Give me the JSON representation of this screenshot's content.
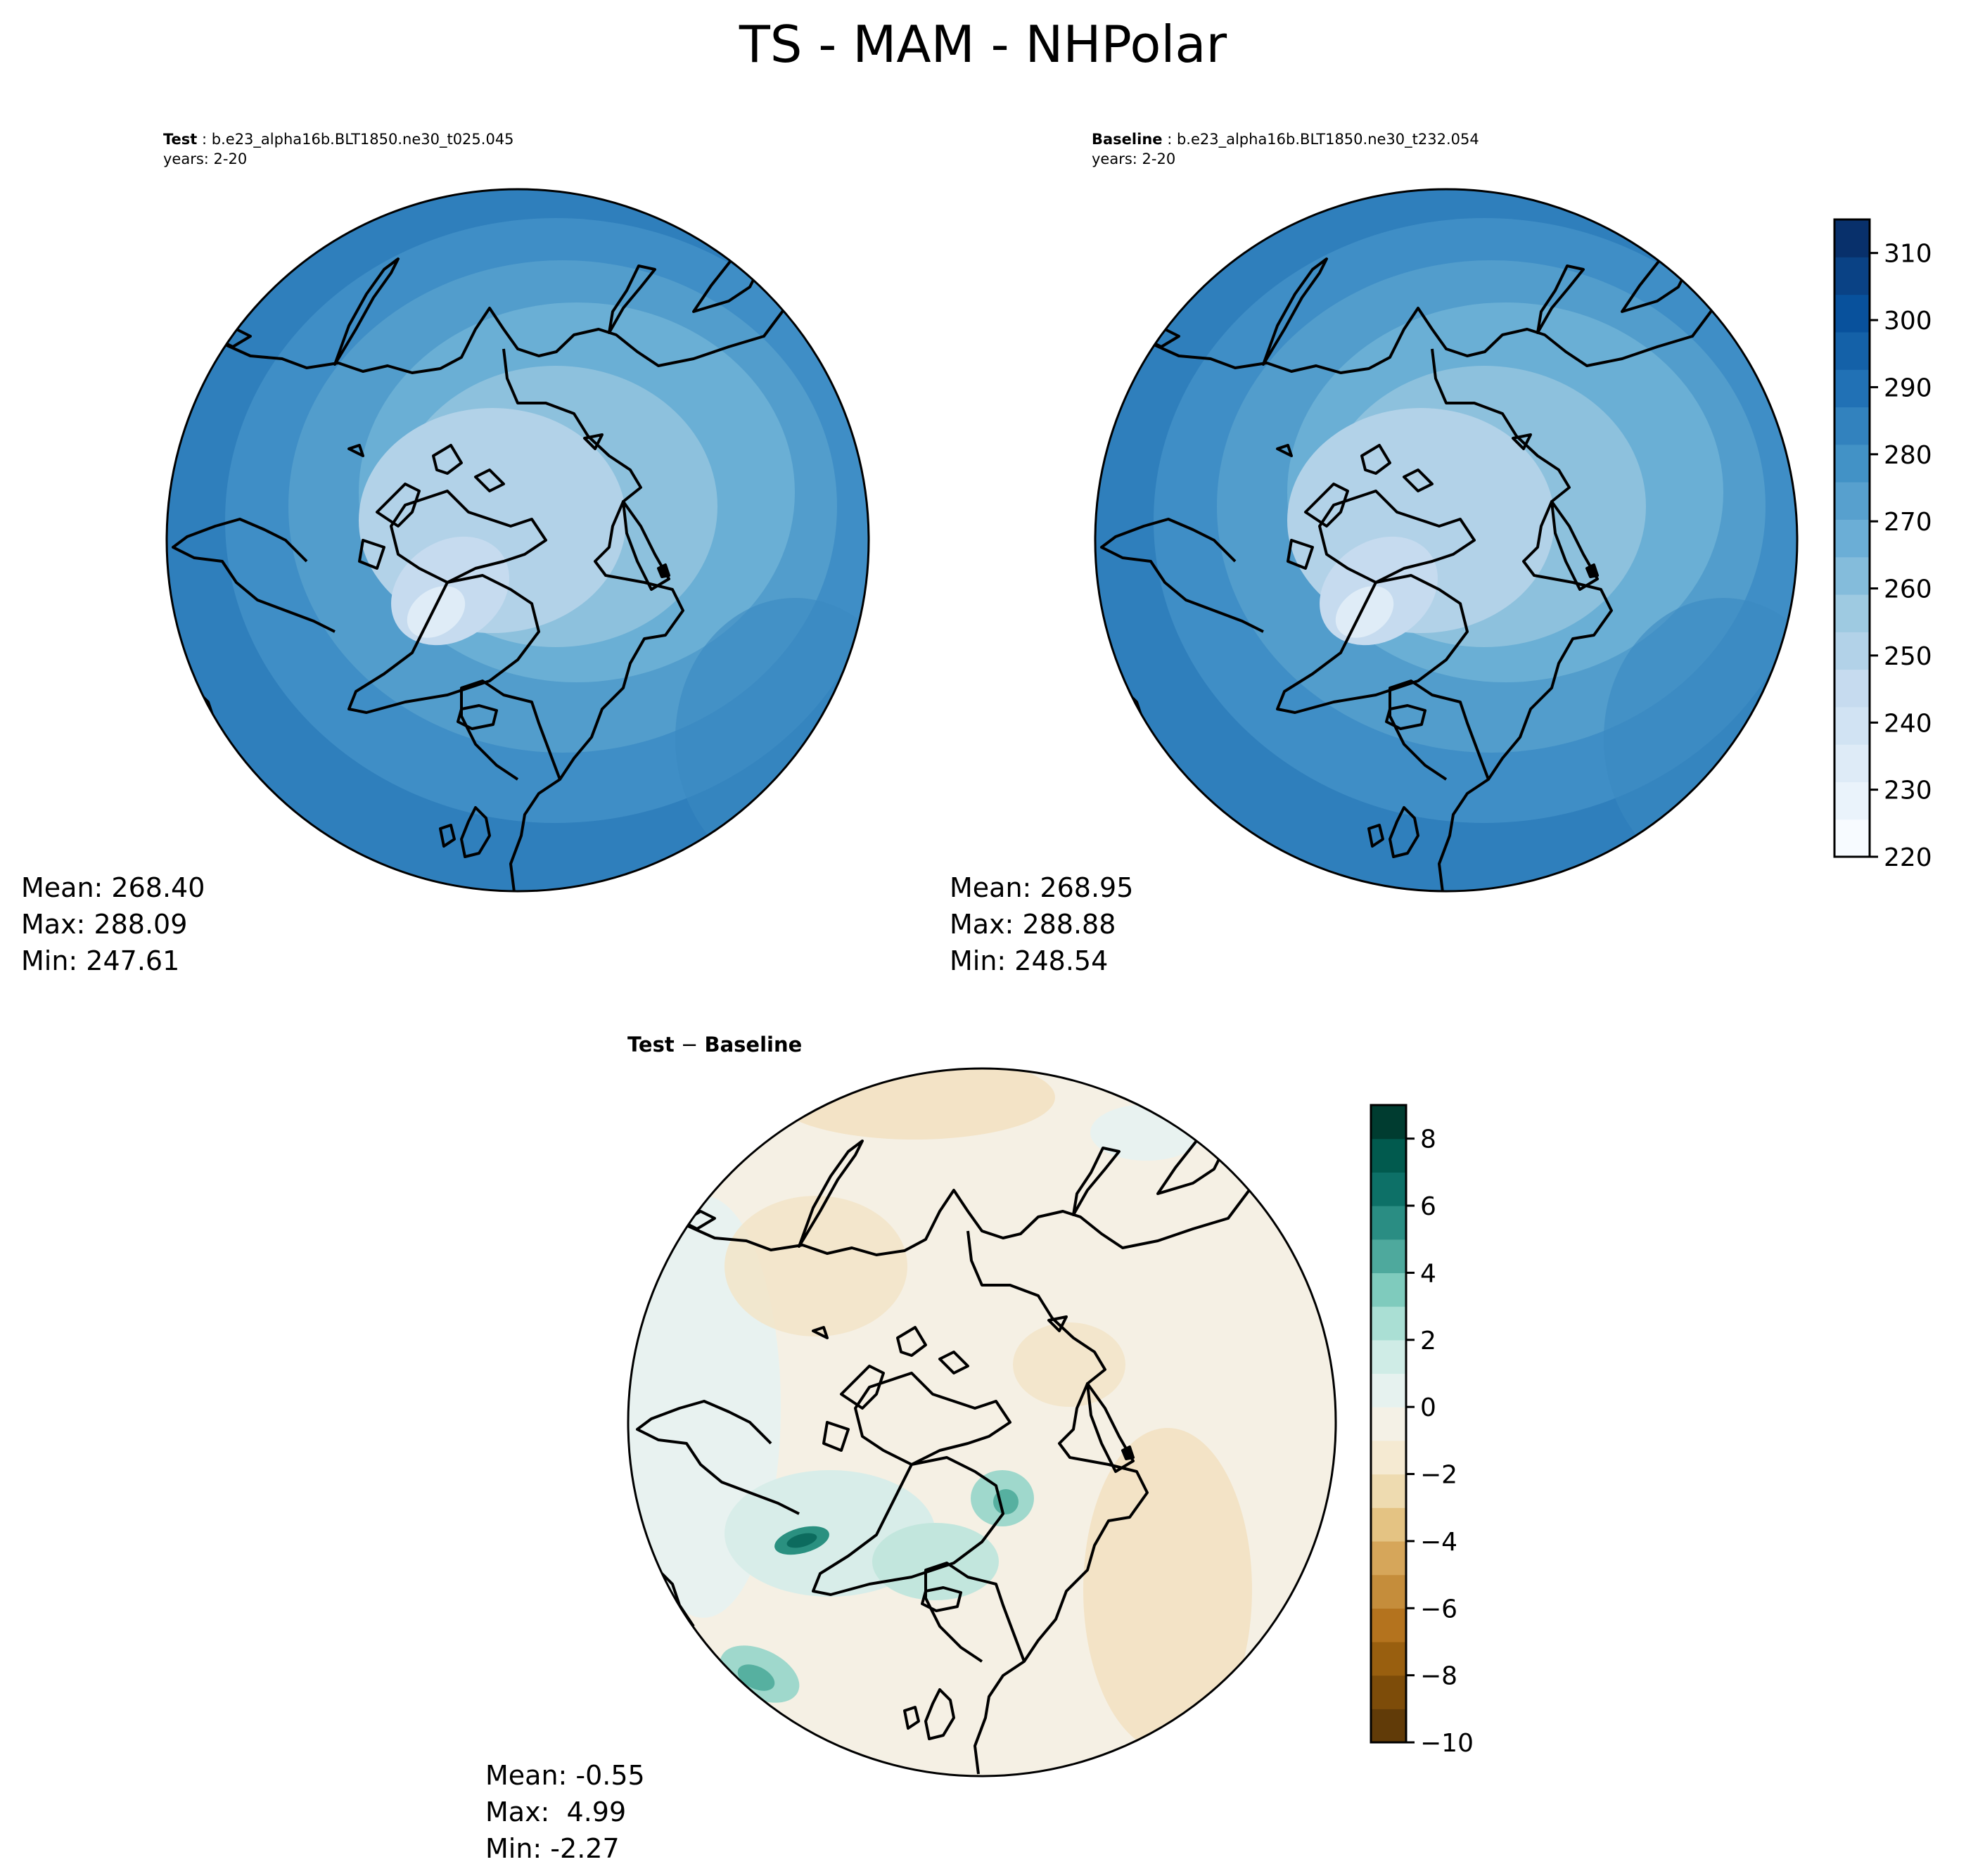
{
  "figure": {
    "title": "TS - MAM - NHPolar"
  },
  "panels": {
    "test": {
      "label": "Test",
      "case": "b.e23_alpha16b.BLT1850.ne30_t025.045",
      "years": "years: 2-20",
      "stats": {
        "mean": "Mean: 268.40",
        "max": "Max: 288.09",
        "min": "Min: 247.61"
      }
    },
    "baseline": {
      "label": "Baseline",
      "case": "b.e23_alpha16b.BLT1850.ne30_t232.054",
      "years": "years: 2-20",
      "stats": {
        "mean": "Mean: 268.95",
        "max": "Max: 288.88",
        "min": "Min: 248.54"
      }
    },
    "diff": {
      "label_test": "Test",
      "label_sep": " − ",
      "label_base": "Baseline",
      "stats": {
        "mean": "Mean: -0.55",
        "max": "Max:  4.99",
        "min": "Min: -2.27"
      }
    }
  },
  "colorbars": {
    "field": {
      "cmap": "Blues",
      "range": [
        220,
        315
      ],
      "tick_values": [
        220,
        230,
        240,
        250,
        260,
        270,
        280,
        290,
        300,
        310
      ],
      "tick_labels": [
        "220",
        "230",
        "240",
        "250",
        "260",
        "270",
        "280",
        "290",
        "300",
        "310"
      ]
    },
    "diff": {
      "cmap": "BrBG",
      "range": [
        -10,
        9
      ],
      "tick_values": [
        -10,
        -8,
        -6,
        -4,
        -2,
        0,
        2,
        4,
        6,
        8
      ],
      "tick_labels": [
        "−10",
        "−8",
        "−6",
        "−4",
        "−2",
        "0",
        "2",
        "4",
        "6",
        "8"
      ]
    }
  }
}
